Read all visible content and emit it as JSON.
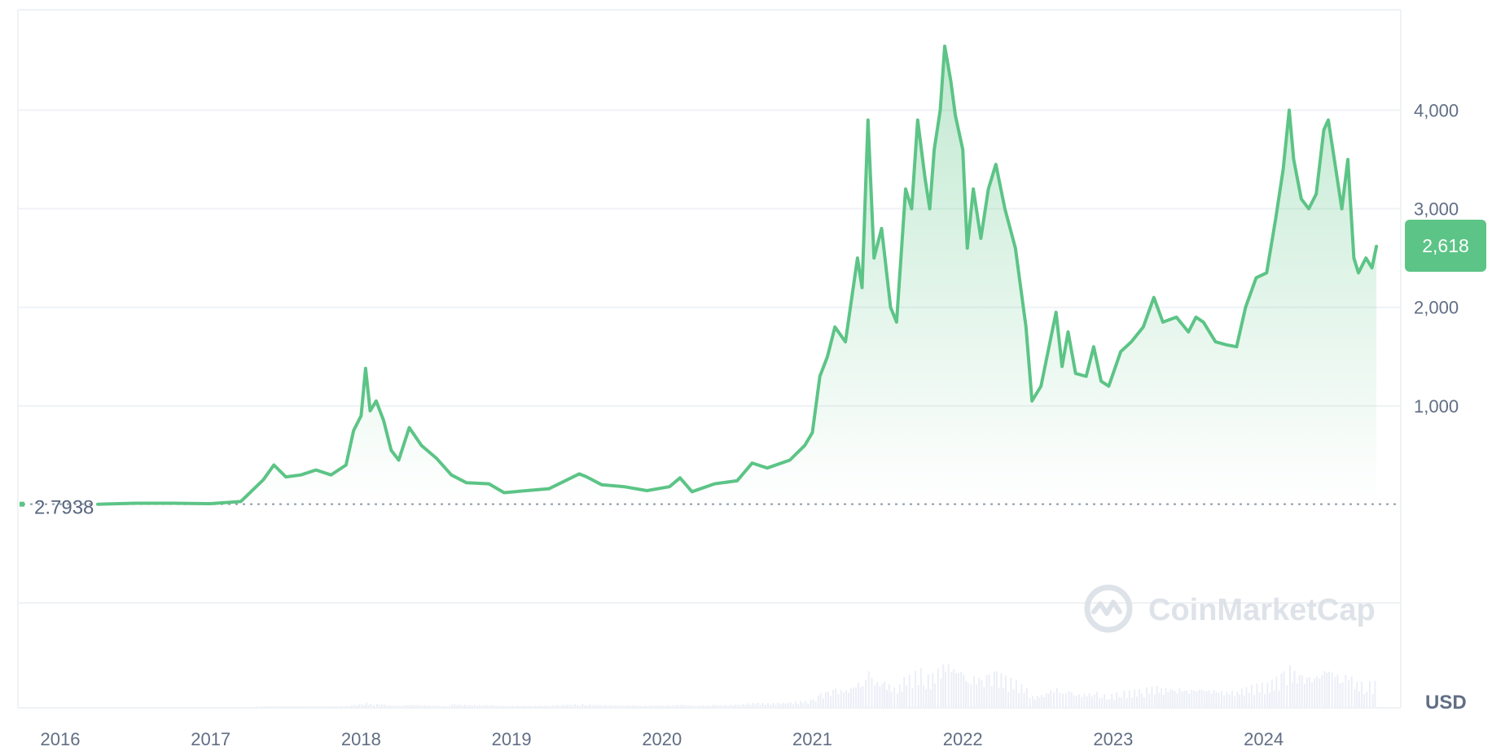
{
  "colors": {
    "line": "#5cc486",
    "grid": "#eff2f5",
    "volume": "#eceef7",
    "badge": "#5cc486",
    "watermark": "#dde1e8"
  },
  "watermark": {
    "text": "CoinMarketCap",
    "icon": "coinmarketcap-logo-icon"
  },
  "currency_label": "USD",
  "start_price_label": "2.7938",
  "current_price_label": "2,618",
  "chart_data": {
    "type": "area",
    "title": "",
    "xlabel": "",
    "ylabel": "",
    "x_ticks": [
      "2016",
      "2017",
      "2018",
      "2019",
      "2020",
      "2021",
      "2022",
      "2023",
      "2024"
    ],
    "y_ticks": [
      "1,000",
      "2,000",
      "3,000",
      "4,000"
    ],
    "y_tick_values": [
      1000,
      2000,
      3000,
      4000
    ],
    "ylim": [
      -1000,
      4900
    ],
    "xlim": [
      2015.6,
      2024.75
    ],
    "grid": true,
    "baseline_value": 2.7938,
    "current_value": 2618,
    "series": [
      {
        "values": [
          [
            2016.25,
            2.8
          ],
          [
            2016.5,
            12
          ],
          [
            2016.75,
            12
          ],
          [
            2017.0,
            8
          ],
          [
            2017.2,
            30
          ],
          [
            2017.35,
            250
          ],
          [
            2017.42,
            400
          ],
          [
            2017.5,
            280
          ],
          [
            2017.6,
            300
          ],
          [
            2017.7,
            350
          ],
          [
            2017.8,
            300
          ],
          [
            2017.9,
            400
          ],
          [
            2017.95,
            750
          ],
          [
            2018.0,
            900
          ],
          [
            2018.03,
            1380
          ],
          [
            2018.06,
            950
          ],
          [
            2018.1,
            1050
          ],
          [
            2018.15,
            850
          ],
          [
            2018.2,
            550
          ],
          [
            2018.25,
            450
          ],
          [
            2018.32,
            780
          ],
          [
            2018.4,
            600
          ],
          [
            2018.5,
            470
          ],
          [
            2018.6,
            300
          ],
          [
            2018.7,
            220
          ],
          [
            2018.85,
            210
          ],
          [
            2018.95,
            120
          ],
          [
            2019.1,
            140
          ],
          [
            2019.25,
            160
          ],
          [
            2019.45,
            310
          ],
          [
            2019.5,
            280
          ],
          [
            2019.6,
            200
          ],
          [
            2019.75,
            180
          ],
          [
            2019.9,
            140
          ],
          [
            2020.05,
            180
          ],
          [
            2020.12,
            270
          ],
          [
            2020.2,
            130
          ],
          [
            2020.35,
            210
          ],
          [
            2020.5,
            240
          ],
          [
            2020.6,
            420
          ],
          [
            2020.7,
            370
          ],
          [
            2020.85,
            450
          ],
          [
            2020.95,
            600
          ],
          [
            2021.0,
            730
          ],
          [
            2021.05,
            1300
          ],
          [
            2021.1,
            1500
          ],
          [
            2021.15,
            1800
          ],
          [
            2021.22,
            1650
          ],
          [
            2021.3,
            2500
          ],
          [
            2021.33,
            2200
          ],
          [
            2021.37,
            3900
          ],
          [
            2021.41,
            2500
          ],
          [
            2021.46,
            2800
          ],
          [
            2021.52,
            2000
          ],
          [
            2021.56,
            1850
          ],
          [
            2021.62,
            3200
          ],
          [
            2021.66,
            3000
          ],
          [
            2021.7,
            3900
          ],
          [
            2021.75,
            3300
          ],
          [
            2021.78,
            3000
          ],
          [
            2021.81,
            3600
          ],
          [
            2021.85,
            4000
          ],
          [
            2021.88,
            4650
          ],
          [
            2021.92,
            4300
          ],
          [
            2021.95,
            3950
          ],
          [
            2022.0,
            3600
          ],
          [
            2022.03,
            2600
          ],
          [
            2022.07,
            3200
          ],
          [
            2022.12,
            2700
          ],
          [
            2022.17,
            3200
          ],
          [
            2022.22,
            3450
          ],
          [
            2022.28,
            3000
          ],
          [
            2022.35,
            2600
          ],
          [
            2022.42,
            1800
          ],
          [
            2022.46,
            1050
          ],
          [
            2022.52,
            1200
          ],
          [
            2022.58,
            1650
          ],
          [
            2022.62,
            1950
          ],
          [
            2022.66,
            1400
          ],
          [
            2022.7,
            1750
          ],
          [
            2022.75,
            1330
          ],
          [
            2022.82,
            1300
          ],
          [
            2022.87,
            1600
          ],
          [
            2022.92,
            1250
          ],
          [
            2022.97,
            1200
          ],
          [
            2023.05,
            1550
          ],
          [
            2023.12,
            1650
          ],
          [
            2023.2,
            1800
          ],
          [
            2023.27,
            2100
          ],
          [
            2023.33,
            1850
          ],
          [
            2023.42,
            1900
          ],
          [
            2023.5,
            1750
          ],
          [
            2023.55,
            1900
          ],
          [
            2023.6,
            1850
          ],
          [
            2023.68,
            1650
          ],
          [
            2023.75,
            1620
          ],
          [
            2023.82,
            1600
          ],
          [
            2023.88,
            2000
          ],
          [
            2023.95,
            2300
          ],
          [
            2024.02,
            2350
          ],
          [
            2024.08,
            2900
          ],
          [
            2024.13,
            3400
          ],
          [
            2024.17,
            4000
          ],
          [
            2024.2,
            3500
          ],
          [
            2024.25,
            3100
          ],
          [
            2024.3,
            3000
          ],
          [
            2024.35,
            3150
          ],
          [
            2024.4,
            3800
          ],
          [
            2024.43,
            3900
          ],
          [
            2024.47,
            3500
          ],
          [
            2024.52,
            3000
          ],
          [
            2024.56,
            3500
          ],
          [
            2024.6,
            2500
          ],
          [
            2024.63,
            2350
          ],
          [
            2024.68,
            2500
          ],
          [
            2024.72,
            2400
          ],
          [
            2024.75,
            2618
          ]
        ]
      }
    ]
  }
}
